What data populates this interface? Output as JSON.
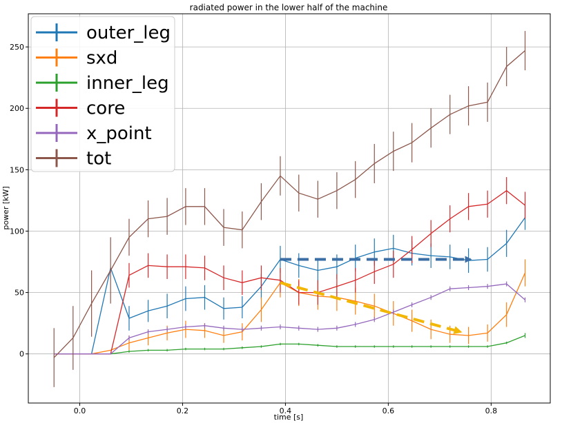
{
  "chart_data": {
    "type": "line",
    "title": "radiated power in the lower half of the machine",
    "xlabel": "time [s]",
    "ylabel": "power [kW]",
    "xlim": [
      -0.1,
      0.915
    ],
    "ylim": [
      -40,
      277
    ],
    "xticks": [
      0.0,
      0.2,
      0.4,
      0.6,
      0.8
    ],
    "xtick_labels": [
      "0.0",
      "0.2",
      "0.4",
      "0.6",
      "0.8"
    ],
    "yticks": [
      0,
      50,
      100,
      150,
      200,
      250
    ],
    "ytick_labels": [
      "0",
      "50",
      "100",
      "150",
      "200",
      "250"
    ],
    "grid": true,
    "legend_position": "top-left",
    "x": [
      -0.05,
      -0.013,
      0.023,
      0.06,
      0.096,
      0.133,
      0.17,
      0.206,
      0.243,
      0.28,
      0.316,
      0.353,
      0.39,
      0.426,
      0.463,
      0.5,
      0.536,
      0.573,
      0.61,
      0.646,
      0.683,
      0.72,
      0.756,
      0.793,
      0.83,
      0.866
    ],
    "series": [
      {
        "name": "outer_leg",
        "color": "#1f77b4",
        "values": [
          0,
          0,
          0,
          70,
          29,
          35,
          39,
          45,
          46,
          37,
          38,
          55,
          77,
          72,
          68,
          71,
          78,
          83,
          86,
          82,
          80,
          79,
          76,
          77,
          90,
          111
        ],
        "errors": [
          0,
          0,
          0,
          0,
          10,
          9,
          10,
          10,
          10,
          9,
          9,
          10,
          11,
          10,
          10,
          10,
          11,
          11,
          11,
          10,
          10,
          10,
          10,
          10,
          11,
          10
        ]
      },
      {
        "name": "sxd",
        "color": "#ff7f0e",
        "values": [
          0,
          0,
          0,
          3,
          9,
          13,
          17,
          20,
          19,
          15,
          18,
          36,
          58,
          50,
          47,
          46,
          43,
          39,
          33,
          27,
          20,
          16,
          15,
          17,
          32,
          66
        ],
        "errors": [
          0,
          0,
          0,
          0,
          6,
          6,
          6,
          7,
          6,
          6,
          7,
          10,
          12,
          11,
          11,
          11,
          11,
          10,
          10,
          9,
          8,
          7,
          7,
          7,
          10,
          11
        ]
      },
      {
        "name": "inner_leg",
        "color": "#2ca02c",
        "values": [
          0,
          0,
          0,
          0,
          2,
          3,
          3,
          4,
          4,
          4,
          5,
          6,
          8,
          8,
          7,
          6,
          6,
          6,
          6,
          6,
          6,
          6,
          6,
          6,
          9,
          15
        ],
        "errors": [
          0,
          0,
          0,
          0,
          1,
          1,
          1,
          1,
          1,
          1,
          1,
          1,
          1,
          1,
          1,
          1,
          1,
          1,
          1,
          1,
          1,
          1,
          1,
          1,
          1,
          2
        ]
      },
      {
        "name": "core",
        "color": "#d62728",
        "values": [
          0,
          0,
          0,
          0,
          64,
          72,
          71,
          71,
          70,
          62,
          58,
          62,
          60,
          50,
          50,
          55,
          60,
          67,
          73,
          85,
          98,
          110,
          120,
          122,
          133,
          121
        ],
        "errors": [
          0,
          0,
          0,
          0,
          10,
          10,
          10,
          10,
          10,
          10,
          10,
          10,
          10,
          10,
          10,
          10,
          10,
          10,
          11,
          11,
          11,
          11,
          11,
          11,
          11,
          11
        ]
      },
      {
        "name": "x_point",
        "color": "#9467bd",
        "values": [
          0,
          0,
          0,
          0,
          13,
          18,
          20,
          22,
          23,
          21,
          20,
          21,
          22,
          21,
          20,
          21,
          24,
          28,
          34,
          40,
          46,
          53,
          54,
          55,
          57,
          44
        ],
        "errors": [
          0,
          0,
          0,
          0,
          2,
          2,
          2,
          2,
          2,
          2,
          2,
          2,
          2,
          2,
          2,
          2,
          2,
          2,
          2,
          2,
          2,
          2,
          2,
          2,
          2,
          2
        ]
      },
      {
        "name": "tot",
        "color": "#8c564b",
        "values": [
          -3,
          13,
          41,
          68,
          95,
          110,
          112,
          120,
          120,
          103,
          101,
          124,
          145,
          131,
          126,
          133,
          142,
          155,
          165,
          172,
          184,
          195,
          202,
          205,
          234,
          247
        ],
        "errors": [
          24,
          26,
          27,
          27,
          15,
          15,
          15,
          15,
          15,
          15,
          15,
          15,
          16,
          15,
          15,
          15,
          15,
          16,
          16,
          16,
          16,
          16,
          16,
          16,
          16,
          16
        ]
      }
    ],
    "annotations": [
      {
        "type": "arrow",
        "style": "dashed",
        "color": "#3a6ea5",
        "from": [
          0.39,
          77
        ],
        "to": [
          0.76,
          77
        ]
      },
      {
        "type": "arrow",
        "style": "dashed",
        "color": "#f2b705",
        "from": [
          0.39,
          58
        ],
        "to": [
          0.74,
          18
        ]
      }
    ]
  }
}
